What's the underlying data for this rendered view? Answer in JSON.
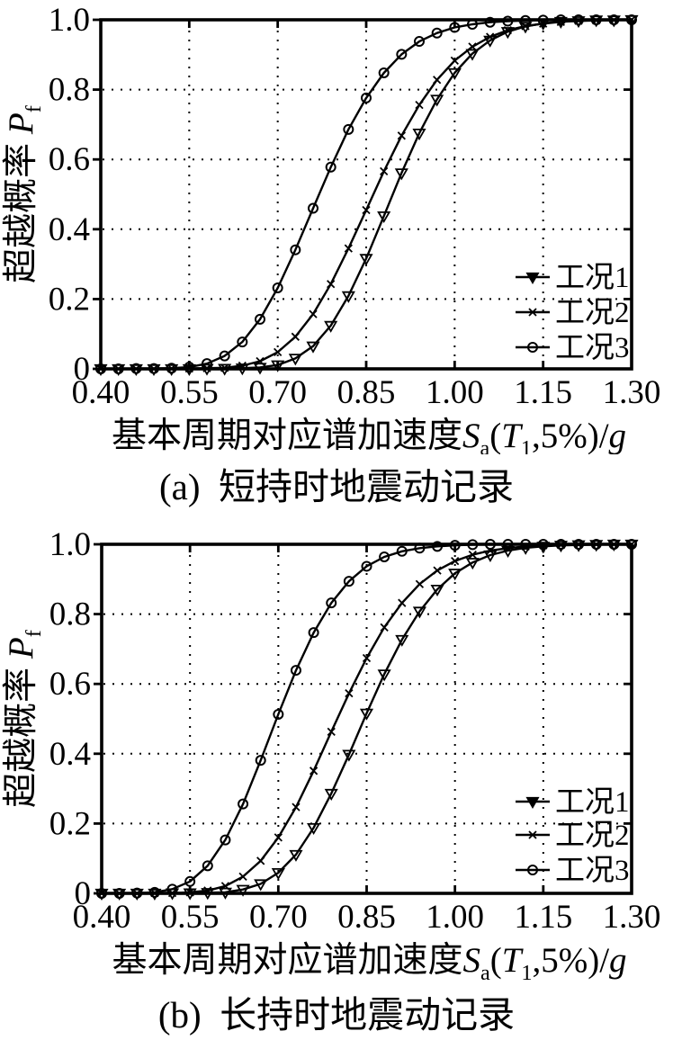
{
  "page": {
    "background": "#ffffff",
    "ink_color": "#000000"
  },
  "chart_data": [
    {
      "id": "a",
      "type": "line",
      "caption": "(a)  短持时地震动记录",
      "xlabel": "基本周期对应谱加速度Sa(T1,5%)/g",
      "ylabel": "超越概率 Pf",
      "xlabel_parts": [
        {
          "t": "基本周期对应谱加速度"
        },
        {
          "t": "S",
          "style": "italic"
        },
        {
          "t": "a",
          "style": "sub"
        },
        {
          "t": "("
        },
        {
          "t": "T",
          "style": "italic"
        },
        {
          "t": "1",
          "style": "sub"
        },
        {
          "t": ",5%)/"
        },
        {
          "t": "g",
          "style": "italic"
        }
      ],
      "ylabel_parts": [
        {
          "t": "超越概率 "
        },
        {
          "t": "P",
          "style": "italic"
        },
        {
          "t": "f",
          "style": "sub"
        }
      ],
      "xlim": [
        0.4,
        1.3
      ],
      "ylim": [
        0,
        1.0
      ],
      "grid": "dotted",
      "legend_position": "lower right",
      "x_ticks": {
        "values": [
          0.4,
          0.55,
          0.7,
          0.85,
          1.0,
          1.15,
          1.3
        ],
        "labels": [
          "0.40",
          "0.55",
          "0.70",
          "0.85",
          "1.00",
          "1.15",
          "1.30"
        ]
      },
      "y_ticks": {
        "values": [
          0,
          0.2,
          0.4,
          0.6,
          0.8,
          1.0
        ],
        "labels": [
          "0",
          "0.2",
          "0.4",
          "0.6",
          "0.8",
          "1.0"
        ]
      },
      "x": [
        0.4,
        0.43,
        0.46,
        0.49,
        0.52,
        0.55,
        0.58,
        0.61,
        0.64,
        0.67,
        0.7,
        0.73,
        0.76,
        0.79,
        0.82,
        0.85,
        0.88,
        0.91,
        0.94,
        0.97,
        1.0,
        1.03,
        1.06,
        1.09,
        1.12,
        1.15,
        1.18,
        1.21,
        1.24,
        1.27,
        1.3
      ],
      "series": [
        {
          "name": "工况1",
          "marker": "triangle-down",
          "values": [
            0,
            0,
            0,
            0,
            0,
            0,
            0.001,
            0.001,
            0.002,
            0.004,
            0.011,
            0.03,
            0.065,
            0.124,
            0.209,
            0.316,
            0.438,
            0.561,
            0.675,
            0.772,
            0.848,
            0.903,
            0.941,
            0.966,
            0.981,
            0.99,
            0.995,
            0.997,
            0.999,
            0.999,
            1
          ]
        },
        {
          "name": "工况2",
          "marker": "x",
          "values": [
            0,
            0,
            0,
            0,
            0.001,
            0.001,
            0.002,
            0.003,
            0.009,
            0.022,
            0.048,
            0.092,
            0.157,
            0.243,
            0.345,
            0.455,
            0.566,
            0.668,
            0.756,
            0.828,
            0.883,
            0.923,
            0.951,
            0.97,
            0.982,
            0.989,
            0.994,
            0.997,
            0.998,
            0.999,
            1
          ]
        },
        {
          "name": "工况3",
          "marker": "circle",
          "values": [
            0,
            0,
            0.001,
            0.001,
            0.002,
            0.005,
            0.015,
            0.037,
            0.077,
            0.142,
            0.232,
            0.341,
            0.46,
            0.578,
            0.686,
            0.776,
            0.848,
            0.901,
            0.938,
            0.962,
            0.978,
            0.987,
            0.993,
            0.996,
            0.998,
            0.999,
            1,
            1,
            1,
            1,
            1
          ]
        }
      ]
    },
    {
      "id": "b",
      "type": "line",
      "caption": "(b)  长持时地震动记录",
      "xlabel": "基本周期对应谱加速度Sa(T1,5%)/g",
      "ylabel": "超越概率 Pf",
      "xlabel_parts": [
        {
          "t": "基本周期对应谱加速度"
        },
        {
          "t": "S",
          "style": "italic"
        },
        {
          "t": "a",
          "style": "sub"
        },
        {
          "t": "("
        },
        {
          "t": "T",
          "style": "italic"
        },
        {
          "t": "1",
          "style": "sub"
        },
        {
          "t": ",5%)/"
        },
        {
          "t": "g",
          "style": "italic"
        }
      ],
      "ylabel_parts": [
        {
          "t": "超越概率 "
        },
        {
          "t": "P",
          "style": "italic"
        },
        {
          "t": "f",
          "style": "sub"
        }
      ],
      "xlim": [
        0.4,
        1.3
      ],
      "ylim": [
        0,
        1.0
      ],
      "grid": "dotted",
      "legend_position": "lower right",
      "x_ticks": {
        "values": [
          0.4,
          0.55,
          0.7,
          0.85,
          1.0,
          1.15,
          1.3
        ],
        "labels": [
          "0.40",
          "0.55",
          "0.70",
          "0.85",
          "1.00",
          "1.15",
          "1.30"
        ]
      },
      "y_ticks": {
        "values": [
          0,
          0.2,
          0.4,
          0.6,
          0.8,
          1.0
        ],
        "labels": [
          "0",
          "0.2",
          "0.4",
          "0.6",
          "0.8",
          "1.0"
        ]
      },
      "x": [
        0.4,
        0.43,
        0.46,
        0.49,
        0.52,
        0.55,
        0.58,
        0.61,
        0.64,
        0.67,
        0.7,
        0.73,
        0.76,
        0.79,
        0.82,
        0.85,
        0.88,
        0.91,
        0.94,
        0.97,
        1.0,
        1.03,
        1.06,
        1.09,
        1.12,
        1.15,
        1.18,
        1.21,
        1.24,
        1.27,
        1.3
      ],
      "series": [
        {
          "name": "工况1",
          "marker": "triangle-down",
          "values": [
            0,
            0,
            0,
            0,
            0.001,
            0.001,
            0.002,
            0.003,
            0.011,
            0.027,
            0.059,
            0.111,
            0.188,
            0.286,
            0.398,
            0.516,
            0.628,
            0.727,
            0.808,
            0.871,
            0.917,
            0.948,
            0.969,
            0.982,
            0.99,
            0.994,
            0.997,
            0.998,
            0.999,
            1,
            1
          ]
        },
        {
          "name": "工况2",
          "marker": "x",
          "values": [
            0,
            0,
            0,
            0.001,
            0.001,
            0.003,
            0.008,
            0.021,
            0.048,
            0.093,
            0.16,
            0.247,
            0.351,
            0.463,
            0.573,
            0.674,
            0.762,
            0.832,
            0.886,
            0.925,
            0.952,
            0.97,
            0.982,
            0.989,
            0.994,
            0.997,
            0.998,
            0.999,
            1,
            1,
            1
          ]
        },
        {
          "name": "工况3",
          "marker": "circle",
          "values": [
            0,
            0,
            0.001,
            0.003,
            0.012,
            0.034,
            0.079,
            0.153,
            0.256,
            0.381,
            0.513,
            0.639,
            0.747,
            0.832,
            0.894,
            0.937,
            0.964,
            0.98,
            0.989,
            0.994,
            0.997,
            0.999,
            1,
            1,
            1,
            1,
            1,
            1,
            1,
            1,
            1
          ]
        }
      ]
    }
  ]
}
